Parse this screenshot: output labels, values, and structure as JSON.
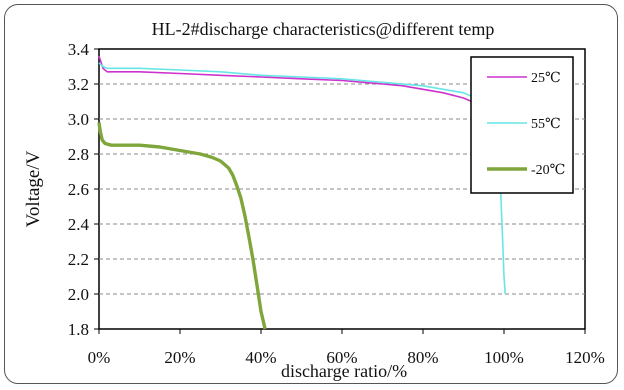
{
  "chart_data": {
    "type": "line",
    "title": "HL-2#discharge characteristics@different temp",
    "xlabel": "discharge ratio/%",
    "ylabel": "Voltage/V",
    "xlim": [
      0,
      120
    ],
    "ylim": [
      1.8,
      3.4
    ],
    "x_ticks": [
      "0%",
      "20%",
      "40%",
      "60%",
      "80%",
      "100%",
      "120%"
    ],
    "y_ticks": [
      "1.8",
      "2.0",
      "2.2",
      "2.4",
      "2.6",
      "2.8",
      "3.0",
      "3.2",
      "3.4"
    ],
    "grid": "horizontal dashed",
    "legend_position": "top-right",
    "series": [
      {
        "name": "25℃",
        "color": "#cc33cc",
        "x": [
          0,
          1,
          2,
          5,
          10,
          20,
          30,
          40,
          50,
          60,
          70,
          75,
          80,
          85,
          90,
          92
        ],
        "y": [
          3.36,
          3.29,
          3.27,
          3.27,
          3.27,
          3.26,
          3.25,
          3.24,
          3.23,
          3.22,
          3.2,
          3.19,
          3.17,
          3.15,
          3.12,
          3.1
        ]
      },
      {
        "name": "55℃",
        "color": "#66e6e6",
        "x": [
          0,
          1,
          2,
          5,
          10,
          20,
          30,
          40,
          50,
          60,
          70,
          80,
          90,
          95,
          98,
          99,
          99.5,
          100,
          100.3
        ],
        "y": [
          3.32,
          3.3,
          3.29,
          3.29,
          3.29,
          3.28,
          3.27,
          3.25,
          3.24,
          3.23,
          3.21,
          3.19,
          3.15,
          3.1,
          2.95,
          2.7,
          2.4,
          2.1,
          2.0
        ]
      },
      {
        "name": "-20℃",
        "color": "#7ea63a",
        "x": [
          0,
          0.3,
          0.8,
          1.5,
          3,
          6,
          10,
          15,
          20,
          25,
          28,
          30,
          32,
          33,
          34,
          35,
          36,
          37,
          38,
          39,
          40,
          41
        ],
        "y": [
          2.98,
          2.93,
          2.88,
          2.86,
          2.85,
          2.85,
          2.85,
          2.84,
          2.82,
          2.8,
          2.78,
          2.76,
          2.72,
          2.68,
          2.62,
          2.55,
          2.45,
          2.33,
          2.2,
          2.05,
          1.9,
          1.8
        ]
      }
    ]
  }
}
